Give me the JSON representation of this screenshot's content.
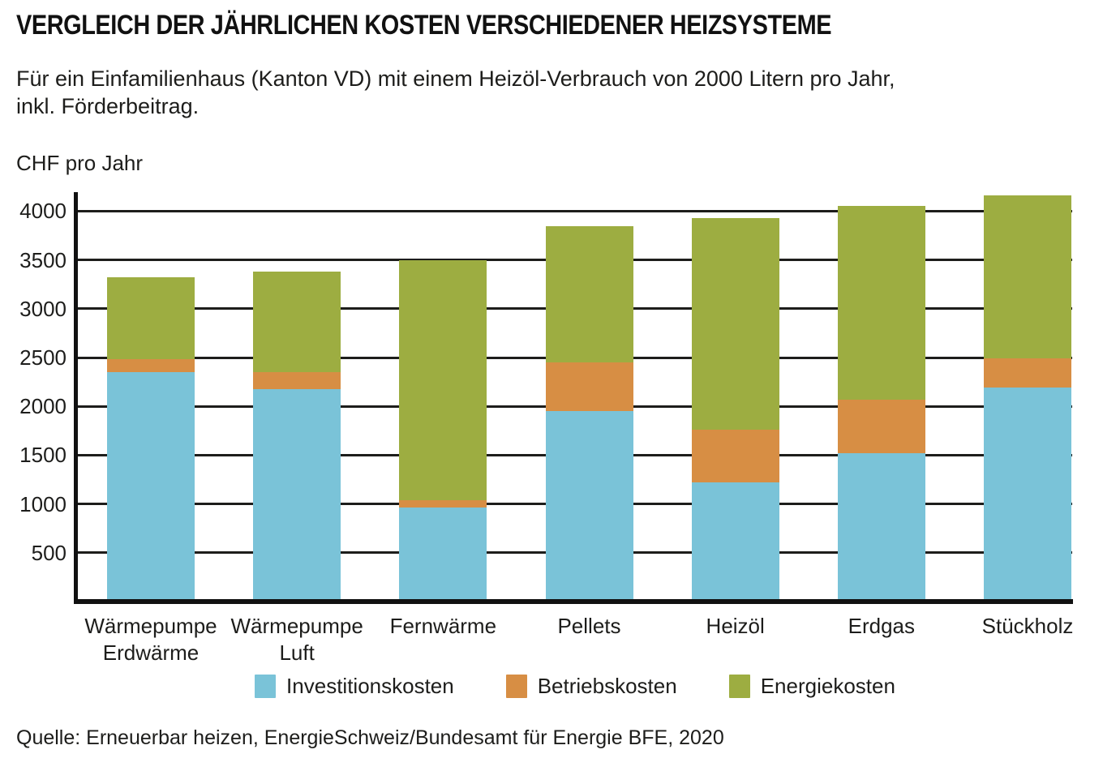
{
  "header": {
    "title": "VERGLEICH DER JÄHRLICHEN KOSTEN VERSCHIEDENER HEIZSYSTEME",
    "subtitle": "Für ein Einfamilienhaus (Kanton VD) mit einem Heizöl-Verbrauch von 2000 Litern pro Jahr,\ninkl. Förderbeitrag."
  },
  "chart_data": {
    "type": "bar",
    "stacked": true,
    "title": "Vergleich der jährlichen Kosten verschiedener Heizsysteme",
    "unit_label": "CHF pro Jahr",
    "ylabel": "CHF pro Jahr",
    "xlabel": "",
    "ylim": [
      0,
      4170
    ],
    "yticks": [
      500,
      1000,
      1500,
      2000,
      2500,
      3000,
      3500,
      4000
    ],
    "grid": "horizontal",
    "legend_position": "bottom",
    "categories": [
      "Wärmepumpe Erdwärme",
      "Wärmepumpe Luft",
      "Fernwärme",
      "Pellets",
      "Heizöl",
      "Erdgas",
      "Stückholz"
    ],
    "category_label_lines": [
      [
        "Wärmepumpe",
        "Erdwärme"
      ],
      [
        "Wärmepumpe",
        "Luft"
      ],
      [
        "Fernwärme"
      ],
      [
        "Pellets"
      ],
      [
        "Heizöl"
      ],
      [
        "Erdgas"
      ],
      [
        "Stückholz"
      ]
    ],
    "series": [
      {
        "name": "Investitionskosten",
        "color": "#7ac3d8",
        "values": [
          2350,
          2180,
          960,
          1950,
          1220,
          1520,
          2190
        ]
      },
      {
        "name": "Betriebskosten",
        "color": "#d78e44",
        "values": [
          130,
          170,
          80,
          500,
          540,
          550,
          300
        ]
      },
      {
        "name": "Energiekosten",
        "color": "#9dad41",
        "values": [
          840,
          1030,
          2460,
          1400,
          2170,
          1980,
          1670
        ]
      }
    ],
    "totals": [
      3320,
      3380,
      3500,
      3850,
      3930,
      4050,
      4160
    ]
  },
  "colors": {
    "investitionskosten": "#7ac3d8",
    "betriebskosten": "#d78e44",
    "energiekosten": "#9dad41",
    "axis": "#111111",
    "grid": "#1d1d1b",
    "text": "#1d1d1b"
  },
  "source": "Quelle: Erneuerbar heizen, EnergieSchweiz/Bundesamt für Energie BFE, 2020"
}
